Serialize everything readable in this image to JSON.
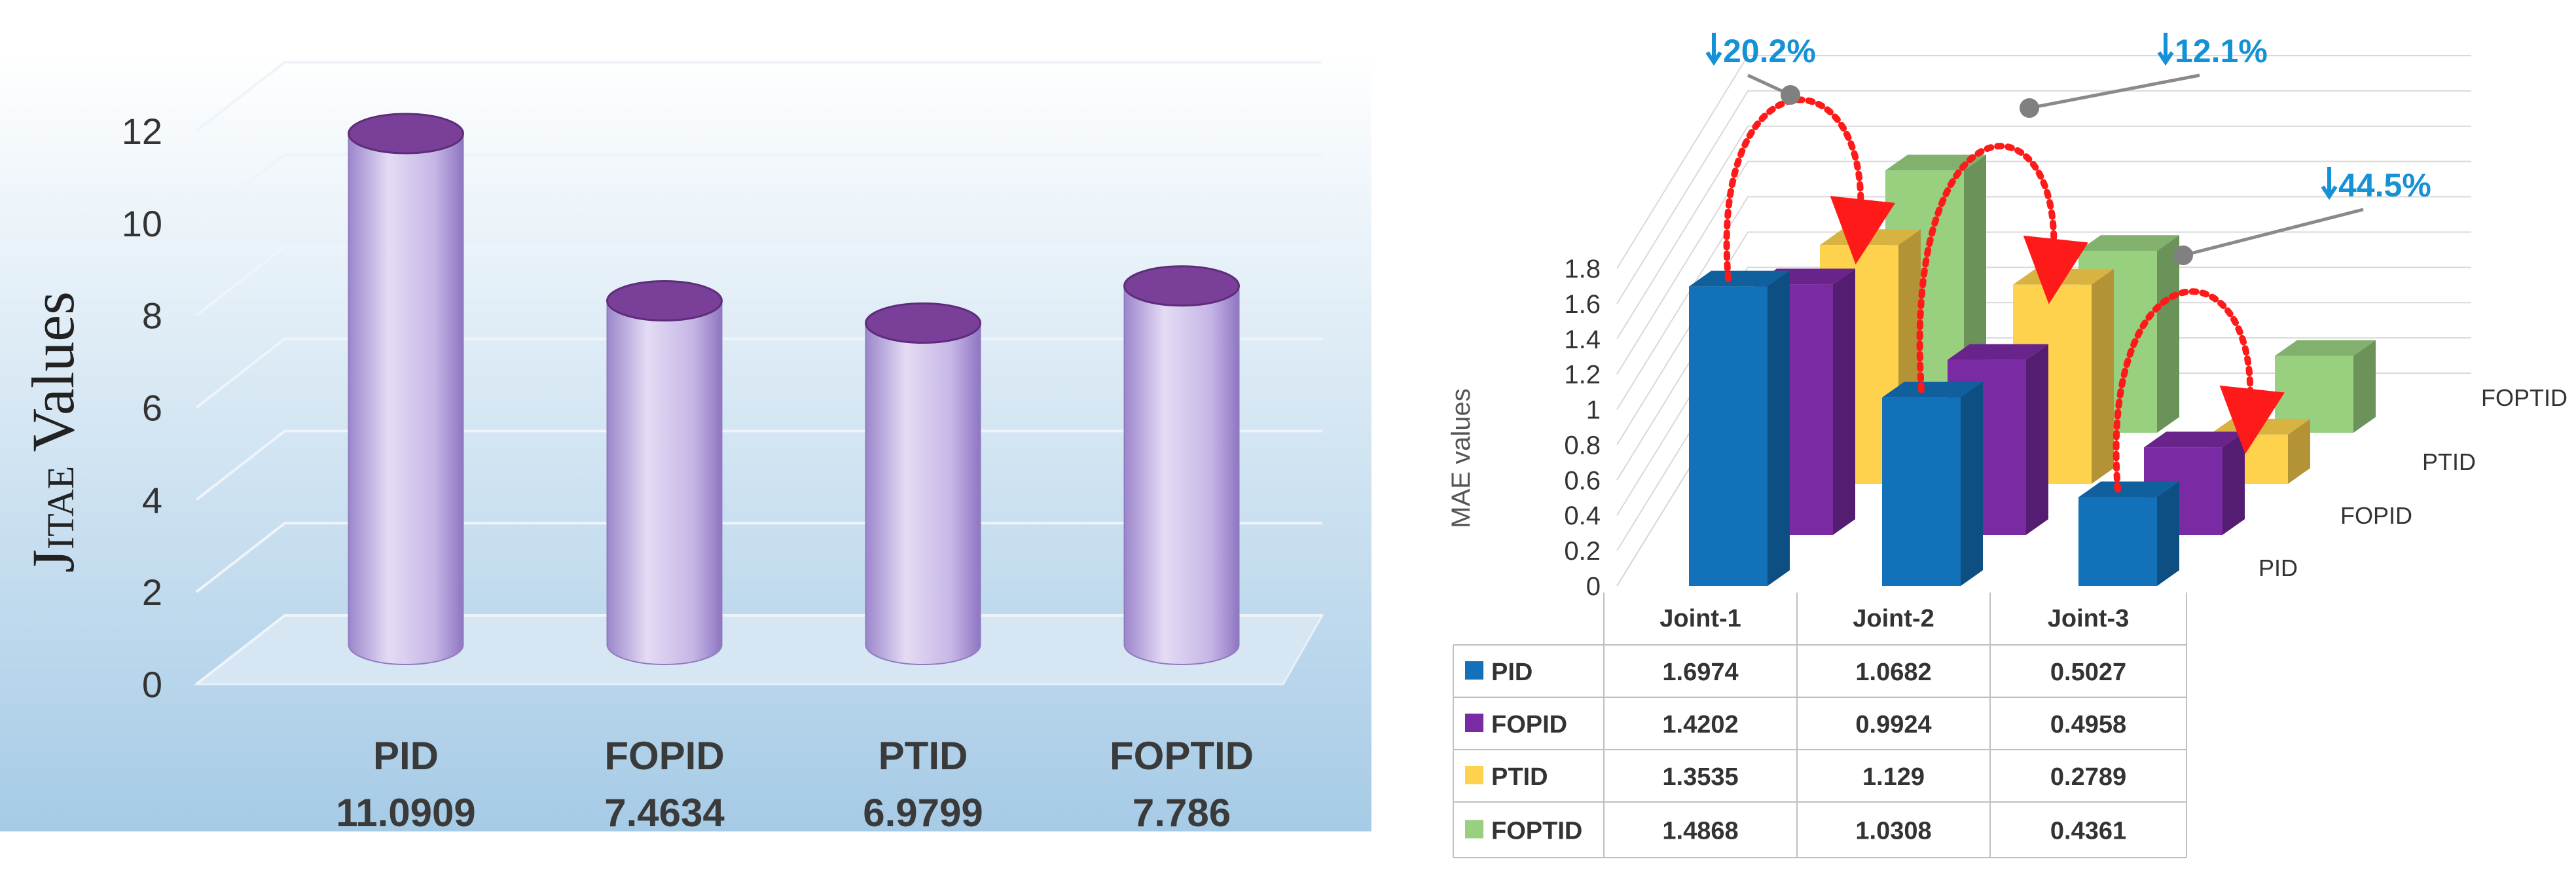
{
  "left_chart": {
    "chart_data": {
      "type": "bar",
      "ylabel_main": "J",
      "ylabel_sub": "ITAE",
      "ylabel_rest": " Values",
      "ylim": [
        0,
        12
      ],
      "yticks": [
        "0",
        "2",
        "4",
        "6",
        "8",
        "10",
        "12"
      ],
      "categories": [
        "PID",
        "FOPID",
        "PTID",
        "FOPTID"
      ],
      "values": [
        11.0909,
        7.4634,
        6.9799,
        7.786
      ],
      "value_labels": [
        "11.0909",
        "7.4634",
        "6.9799",
        "7.786"
      ]
    },
    "colors": {
      "bar_light": "#e4dcf4",
      "bar_dark": "#9c86cc",
      "bar_top": "#7a3f98",
      "bg_top": "#ffffff",
      "bg_bottom": "#a6cbe6"
    }
  },
  "right_chart": {
    "chart_data": {
      "type": "bar",
      "ylabel": "MAE values",
      "ylim": [
        0,
        1.8
      ],
      "yticks": [
        "0",
        "0.2",
        "0.4",
        "0.6",
        "0.8",
        "1",
        "1.2",
        "1.4",
        "1.6",
        "1.8"
      ],
      "categories": [
        "Joint-1",
        "Joint-2",
        "Joint-3"
      ],
      "series": [
        {
          "name": "PID",
          "values": [
            1.6974,
            1.0682,
            0.5027
          ],
          "display": [
            "1.6974",
            "1.0682",
            "0.5027"
          ]
        },
        {
          "name": "FOPID",
          "values": [
            1.4202,
            0.9924,
            0.4958
          ],
          "display": [
            "1.4202",
            "0.9924",
            "0.4958"
          ]
        },
        {
          "name": "PTID",
          "values": [
            1.3535,
            1.129,
            0.2789
          ],
          "display": [
            "1.3535",
            "1.129",
            "0.2789"
          ]
        },
        {
          "name": "FOPTID",
          "values": [
            1.4868,
            1.0308,
            0.4361
          ],
          "display": [
            "1.4868",
            "1.0308",
            "0.4361"
          ]
        }
      ],
      "annotations": [
        "20.2%",
        "12.1%",
        "44.5%"
      ]
    },
    "colors": {
      "PID": "#1271b9",
      "FOPID": "#7a2aa3",
      "PTID": "#ffd24d",
      "FOPTID": "#98d07f",
      "arrow": "#1591d6",
      "curve": "#ff1a1a"
    }
  }
}
